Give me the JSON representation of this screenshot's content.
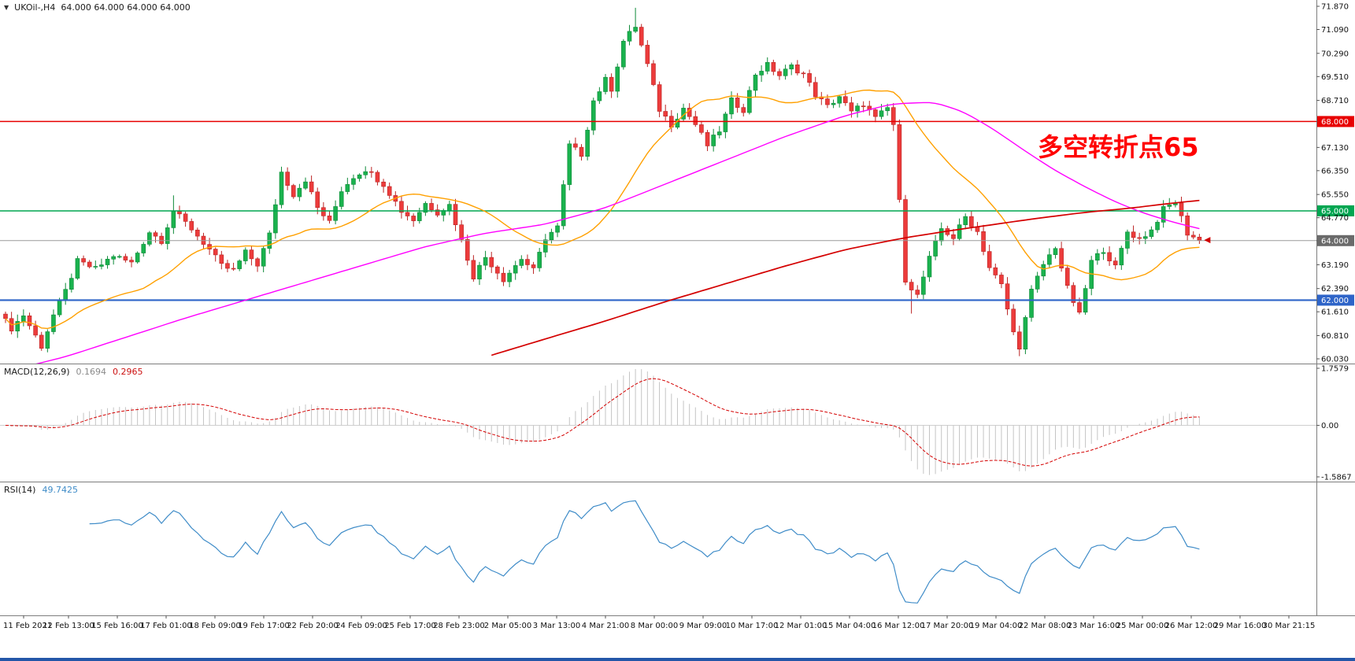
{
  "window": {
    "bg": "#ffffff",
    "frame_color": "#2356a8"
  },
  "header": {
    "dropdown_icon": "▼",
    "symbol": "UKOil-,H4",
    "ohlc": "64.000 64.000 64.000 64.000"
  },
  "annotation": {
    "text": "多空转折点65",
    "color": "#ff0000"
  },
  "price_axis": {
    "labels": [
      {
        "text": "71.870"
      },
      {
        "text": "71.090"
      },
      {
        "text": "70.290"
      },
      {
        "text": "69.510"
      },
      {
        "text": "68.710"
      },
      {
        "text": "68.000",
        "bg": "#e80000",
        "fg": "#ffffff"
      },
      {
        "text": "67.130"
      },
      {
        "text": "66.350"
      },
      {
        "text": "65.550"
      },
      {
        "text": "65.000",
        "bg": "#00a651",
        "fg": "#ffffff"
      },
      {
        "text": "64.770"
      },
      {
        "text": "64.000",
        "bg": "#6a6a6a",
        "fg": "#ffffff"
      },
      {
        "text": "63.190"
      },
      {
        "text": "62.390"
      },
      {
        "text": "62.000",
        "bg": "#2e64c8",
        "fg": "#ffffff"
      },
      {
        "text": "61.610"
      },
      {
        "text": "60.810"
      },
      {
        "text": "60.030"
      }
    ]
  },
  "hlines": [
    {
      "price": 68.0,
      "color": "#e80000",
      "width": 1.5,
      "dash": false
    },
    {
      "price": 65.0,
      "color": "#00a651",
      "width": 1.5,
      "dash": false
    },
    {
      "price": 64.0,
      "color": "#9a9a9a",
      "width": 1,
      "dash": false
    },
    {
      "price": 62.0,
      "color": "#2e64c8",
      "width": 2.2,
      "dash": false
    }
  ],
  "macd_panel": {
    "label": "MACD(12,26,9)",
    "value1": "0.1694",
    "value2": "0.2965",
    "axis": [
      {
        "text": "1.7579",
        "v": 1.7579
      },
      {
        "text": "0.00",
        "v": 0
      },
      {
        "text": "-1.5867",
        "v": -1.5867
      }
    ],
    "range": [
      -1.5867,
      1.7579
    ],
    "histogram_color": "#c4c4c4",
    "signal_color": "#d40000"
  },
  "rsi_panel": {
    "label": "RSI(14)",
    "value": "49.7425",
    "line_color": "#3f8cc8",
    "range": [
      10,
      90
    ]
  },
  "time_axis": {
    "labels": [
      "11 Feb 2021",
      "12 Feb 13:00",
      "15 Feb 16:00",
      "17 Feb 01:00",
      "18 Feb 09:00",
      "19 Feb 17:00",
      "22 Feb 20:00",
      "24 Feb 09:00",
      "25 Feb 17:00",
      "28 Feb 23:00",
      "2 Mar 05:00",
      "3 Mar 13:00",
      "4 Mar 21:00",
      "8 Mar 00:00",
      "9 Mar 09:00",
      "10 Mar 17:00",
      "12 Mar 01:00",
      "15 Mar 04:00",
      "16 Mar 12:00",
      "17 Mar 20:00",
      "19 Mar 04:00",
      "22 Mar 08:00",
      "23 Mar 16:00",
      "25 Mar 00:00",
      "26 Mar 12:00",
      "29 Mar 16:00",
      "30 Mar 21:15"
    ]
  },
  "chart_data": {
    "type": "candlestick",
    "symbol": "UKOil-",
    "timeframe": "H4",
    "title": "UKOil-,H4 64.000 64.000 64.000 64.000",
    "n": 200,
    "y_range": [
      60.03,
      71.87
    ],
    "close_anchors": [
      [
        0,
        61.3
      ],
      [
        1,
        61.05
      ],
      [
        3,
        61.5
      ],
      [
        5,
        60.8
      ],
      [
        6,
        60.45
      ],
      [
        8,
        61.5
      ],
      [
        10,
        62.3
      ],
      [
        12,
        63.3
      ],
      [
        15,
        63.05
      ],
      [
        18,
        63.5
      ],
      [
        21,
        63.25
      ],
      [
        24,
        64.3
      ],
      [
        26,
        64.0
      ],
      [
        28,
        65.0
      ],
      [
        31,
        64.4
      ],
      [
        34,
        63.7
      ],
      [
        36,
        63.15
      ],
      [
        38,
        63.0
      ],
      [
        40,
        63.6
      ],
      [
        42,
        63.2
      ],
      [
        44,
        64.2
      ],
      [
        46,
        66.3
      ],
      [
        48,
        65.55
      ],
      [
        50,
        66.05
      ],
      [
        52,
        65.1
      ],
      [
        54,
        64.6
      ],
      [
        56,
        65.7
      ],
      [
        58,
        66.15
      ],
      [
        60,
        66.4
      ],
      [
        63,
        65.9
      ],
      [
        66,
        65.0
      ],
      [
        68,
        64.7
      ],
      [
        70,
        65.25
      ],
      [
        72,
        64.95
      ],
      [
        74,
        65.2
      ],
      [
        76,
        64.0
      ],
      [
        78,
        62.8
      ],
      [
        80,
        63.45
      ],
      [
        83,
        62.7
      ],
      [
        86,
        63.4
      ],
      [
        88,
        63.0
      ],
      [
        90,
        64.1
      ],
      [
        92,
        64.45
      ],
      [
        94,
        67.2
      ],
      [
        96,
        66.9
      ],
      [
        98,
        68.7
      ],
      [
        100,
        69.4
      ],
      [
        101,
        69.1
      ],
      [
        103,
        70.7
      ],
      [
        105,
        71.2
      ],
      [
        107,
        69.9
      ],
      [
        109,
        68.4
      ],
      [
        111,
        67.9
      ],
      [
        113,
        68.45
      ],
      [
        115,
        67.9
      ],
      [
        117,
        67.2
      ],
      [
        119,
        67.7
      ],
      [
        121,
        68.7
      ],
      [
        123,
        68.4
      ],
      [
        125,
        69.6
      ],
      [
        127,
        69.9
      ],
      [
        129,
        69.55
      ],
      [
        131,
        69.85
      ],
      [
        133,
        69.6
      ],
      [
        135,
        68.9
      ],
      [
        137,
        68.5
      ],
      [
        139,
        68.85
      ],
      [
        141,
        68.3
      ],
      [
        143,
        68.6
      ],
      [
        145,
        68.1
      ],
      [
        147,
        68.45
      ],
      [
        148,
        67.9
      ],
      [
        150,
        62.7
      ],
      [
        152,
        62.15
      ],
      [
        154,
        63.4
      ],
      [
        156,
        64.4
      ],
      [
        158,
        64.1
      ],
      [
        160,
        64.8
      ],
      [
        162,
        64.3
      ],
      [
        164,
        63.1
      ],
      [
        166,
        62.5
      ],
      [
        168,
        60.9
      ],
      [
        169,
        60.45
      ],
      [
        171,
        62.3
      ],
      [
        173,
        63.2
      ],
      [
        175,
        63.8
      ],
      [
        177,
        62.4
      ],
      [
        179,
        61.5
      ],
      [
        181,
        63.3
      ],
      [
        183,
        63.7
      ],
      [
        185,
        63.1
      ],
      [
        187,
        64.3
      ],
      [
        189,
        64.05
      ],
      [
        191,
        64.35
      ],
      [
        193,
        65.05
      ],
      [
        195,
        65.3
      ],
      [
        197,
        64.25
      ],
      [
        199,
        64.0
      ]
    ],
    "wick_overrides": {
      "6": {
        "l": 60.3
      },
      "28": {
        "h": 65.52
      },
      "105": {
        "h": 71.82
      },
      "151": {
        "l": 61.55
      },
      "169": {
        "l": 60.12
      }
    },
    "up_color": "#1ab24e",
    "up_border": "#0e8a38",
    "down_color": "#ec3b3b",
    "down_border": "#bb2424",
    "ma_fast": {
      "period": 24,
      "color": "#ffa000"
    },
    "ma_mid": {
      "color": "#ff00ff",
      "anchors": [
        [
          0,
          59.6
        ],
        [
          10,
          60.1
        ],
        [
          20,
          60.75
        ],
        [
          30,
          61.4
        ],
        [
          40,
          62.0
        ],
        [
          50,
          62.6
        ],
        [
          60,
          63.2
        ],
        [
          70,
          63.8
        ],
        [
          80,
          64.25
        ],
        [
          90,
          64.55
        ],
        [
          100,
          65.1
        ],
        [
          110,
          65.9
        ],
        [
          120,
          66.7
        ],
        [
          130,
          67.5
        ],
        [
          140,
          68.2
        ],
        [
          148,
          68.6
        ],
        [
          155,
          68.65
        ],
        [
          160,
          68.3
        ],
        [
          165,
          67.7
        ],
        [
          170,
          67.0
        ],
        [
          175,
          66.35
        ],
        [
          180,
          65.8
        ],
        [
          185,
          65.3
        ],
        [
          190,
          64.9
        ],
        [
          195,
          64.6
        ],
        [
          199,
          64.4
        ]
      ]
    },
    "ma_slow": {
      "color": "#d40000",
      "anchors": [
        [
          81,
          60.15
        ],
        [
          90,
          60.7
        ],
        [
          100,
          61.3
        ],
        [
          110,
          61.95
        ],
        [
          120,
          62.55
        ],
        [
          130,
          63.15
        ],
        [
          140,
          63.7
        ],
        [
          150,
          64.1
        ],
        [
          158,
          64.35
        ],
        [
          165,
          64.55
        ],
        [
          172,
          64.75
        ],
        [
          180,
          64.95
        ],
        [
          188,
          65.1
        ],
        [
          194,
          65.25
        ],
        [
          199,
          65.35
        ]
      ]
    },
    "macd": {
      "fast": 12,
      "slow": 26,
      "signal": 9
    },
    "rsi": {
      "period": 14
    }
  }
}
